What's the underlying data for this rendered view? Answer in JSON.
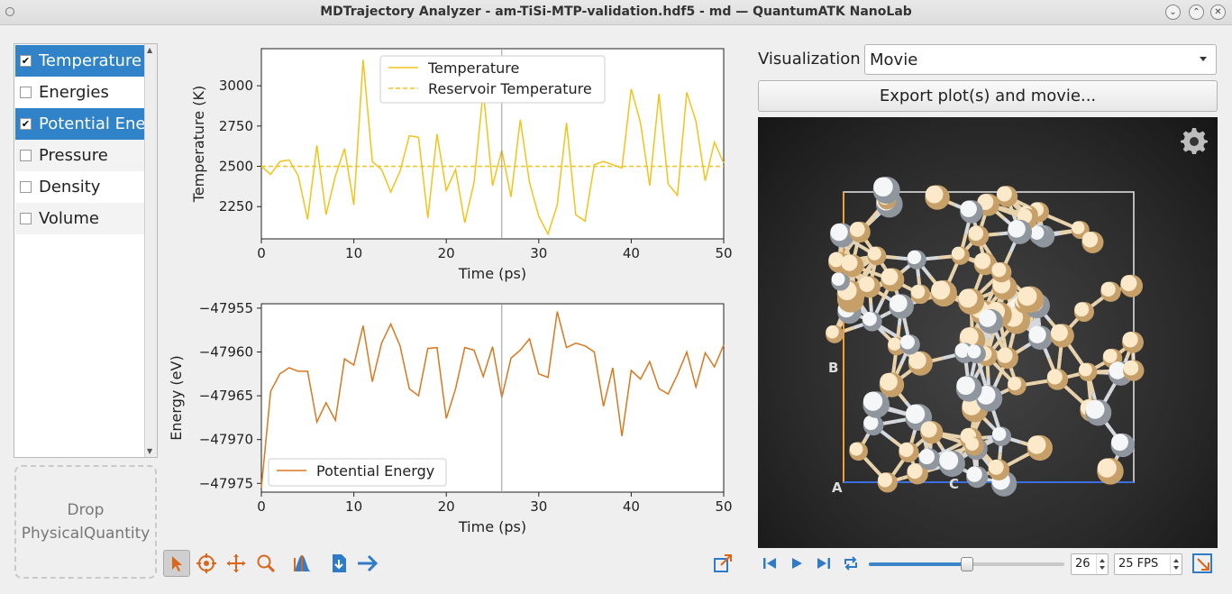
{
  "window": {
    "title": "MDTrajectory Analyzer - am-TiSi-MTP-validation.hdf5 - md — QuantumATK NanoLab"
  },
  "quantities": [
    {
      "label": "Temperature",
      "checked": true,
      "selected": true
    },
    {
      "label": "Energies",
      "checked": false,
      "selected": false
    },
    {
      "label": "Potential Energy",
      "checked": true,
      "selected": true
    },
    {
      "label": "Pressure",
      "checked": false,
      "selected": false
    },
    {
      "label": "Density",
      "checked": false,
      "selected": false
    },
    {
      "label": "Volume",
      "checked": false,
      "selected": false
    }
  ],
  "dropzone": {
    "line1": "Drop",
    "line2": "PhysicalQuantity"
  },
  "plot_toolbar": {
    "icons": [
      "pointer-icon",
      "target-icon",
      "pan-icon",
      "zoom-icon",
      "fit-icon",
      "save-icon",
      "arrow-icon"
    ],
    "popout_icon": "popout-icon"
  },
  "visualization": {
    "label": "Visualization",
    "mode": "Movie",
    "export_label": "Export plot(s) and movie...",
    "axis_labels": {
      "a": "A",
      "b": "B",
      "c": "C"
    }
  },
  "playback": {
    "frame": "26",
    "fps": "25 FPS",
    "progress": 0.5
  },
  "chart_data": [
    {
      "type": "line",
      "xlabel": "Time (ps)",
      "ylabel": "Temperature (K)",
      "xlim": [
        0,
        50
      ],
      "ylim": [
        2050,
        3230
      ],
      "xticks": [
        "0",
        "10",
        "20",
        "30",
        "40",
        "50"
      ],
      "yticks": [
        "2250",
        "2500",
        "2750",
        "3000"
      ],
      "ytick_values": [
        2250,
        2500,
        2750,
        3000
      ],
      "cursor_x": 26,
      "legend": "top-center",
      "series": [
        {
          "name": "Temperature",
          "style": "solid",
          "color": "#f2c31c",
          "x": [
            0,
            1,
            2,
            3,
            4,
            5,
            6,
            7,
            8,
            9,
            10,
            11,
            12,
            13,
            14,
            15,
            16,
            17,
            18,
            19,
            20,
            21,
            22,
            23,
            24,
            25,
            26,
            27,
            28,
            29,
            30,
            31,
            32,
            33,
            34,
            35,
            36,
            37,
            38,
            39,
            40,
            41,
            42,
            43,
            44,
            45,
            46,
            47,
            48,
            49,
            50
          ],
          "y": [
            2500,
            2450,
            2530,
            2540,
            2440,
            2170,
            2630,
            2200,
            2440,
            2610,
            2260,
            3160,
            2530,
            2480,
            2340,
            2470,
            2690,
            2680,
            2180,
            2700,
            2350,
            2480,
            2150,
            2400,
            2970,
            2380,
            2600,
            2310,
            2790,
            2400,
            2190,
            2080,
            2260,
            2770,
            2200,
            2160,
            2510,
            2530,
            2510,
            2490,
            2980,
            2770,
            2380,
            2950,
            2390,
            2320,
            2960,
            2780,
            2410,
            2650,
            2520
          ]
        },
        {
          "name": "Reservoir Temperature",
          "style": "dashed",
          "color": "#f2c31c",
          "x": [
            0,
            50
          ],
          "y": [
            2500,
            2500
          ]
        }
      ]
    },
    {
      "type": "line",
      "xlabel": "Time (ps)",
      "ylabel": "Energy (eV)",
      "xlim": [
        0,
        50
      ],
      "ylim": [
        -47976,
        -47954.5
      ],
      "xticks": [
        "0",
        "10",
        "20",
        "30",
        "40",
        "50"
      ],
      "yticks": [
        "−47955",
        "−47960",
        "−47965",
        "−47970",
        "−47975"
      ],
      "ytick_values": [
        -47955,
        -47960,
        -47965,
        -47970,
        -47975
      ],
      "cursor_x": 26,
      "legend": "bottom-left",
      "series": [
        {
          "name": "Potential Energy",
          "style": "solid",
          "color": "#d9781f",
          "x": [
            0,
            1,
            2,
            3,
            4,
            5,
            6,
            7,
            8,
            9,
            10,
            11,
            12,
            13,
            14,
            15,
            16,
            17,
            18,
            19,
            20,
            21,
            22,
            23,
            24,
            25,
            26,
            27,
            28,
            29,
            30,
            31,
            32,
            33,
            34,
            35,
            36,
            37,
            38,
            39,
            40,
            41,
            42,
            43,
            44,
            45,
            46,
            47,
            48,
            49,
            50
          ],
          "y": [
            -47975.5,
            -47964.5,
            -47962.5,
            -47961.8,
            -47962.2,
            -47962.2,
            -47968,
            -47965.8,
            -47967.8,
            -47960.8,
            -47961.5,
            -47957,
            -47963.4,
            -47959,
            -47956.8,
            -47959.3,
            -47964.2,
            -47965,
            -47959.6,
            -47959.5,
            -47967.6,
            -47964.2,
            -47959.5,
            -47959.8,
            -47962.8,
            -47959.4,
            -47965.2,
            -47960.7,
            -47959.8,
            -47958.5,
            -47962.5,
            -47962.9,
            -47955.4,
            -47959.5,
            -47959,
            -47959.3,
            -47960,
            -47966.2,
            -47961.8,
            -47969.6,
            -47962.1,
            -47963.1,
            -47961.1,
            -47964.2,
            -47964.8,
            -47962.6,
            -47960,
            -47964,
            -47960.1,
            -47961.7,
            -47959.2
          ]
        }
      ]
    }
  ]
}
